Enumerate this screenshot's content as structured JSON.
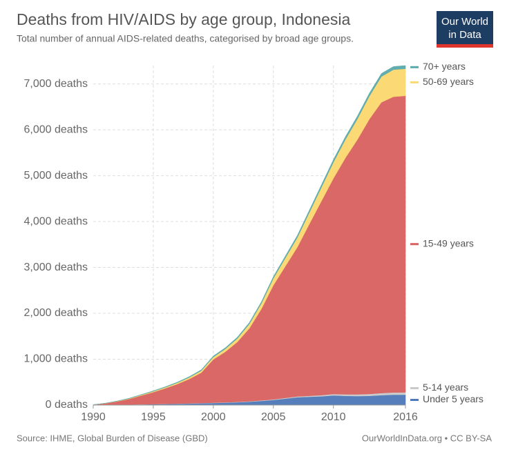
{
  "chart_data": {
    "type": "stacked_area",
    "title": "Deaths from HIV/AIDS by age group, Indonesia",
    "subtitle": "Total number of annual AIDS-related deaths, categorised by broad age groups.",
    "logo": [
      "Our World",
      "in Data"
    ],
    "source": "Source: IHME, Global Burden of Disease (GBD)",
    "credit": "OurWorldInData.org • CC BY-SA",
    "x": [
      1990,
      1991,
      1992,
      1993,
      1994,
      1995,
      1996,
      1997,
      1998,
      1999,
      2000,
      2001,
      2002,
      2003,
      2004,
      2005,
      2006,
      2007,
      2008,
      2009,
      2010,
      2011,
      2012,
      2013,
      2014,
      2015,
      2016
    ],
    "xlim": [
      1990,
      2016
    ],
    "xticks": [
      1990,
      1995,
      2000,
      2005,
      2010,
      2016
    ],
    "ylim": [
      0,
      7400
    ],
    "yticks": [
      {
        "value": 0,
        "label": "0 deaths"
      },
      {
        "value": 1000,
        "label": "1,000 deaths"
      },
      {
        "value": 2000,
        "label": "2,000 deaths"
      },
      {
        "value": 3000,
        "label": "3,000 deaths"
      },
      {
        "value": 4000,
        "label": "4,000 deaths"
      },
      {
        "value": 5000,
        "label": "5,000 deaths"
      },
      {
        "value": 6000,
        "label": "6,000 deaths"
      },
      {
        "value": 7000,
        "label": "7,000 deaths"
      }
    ],
    "grid": true,
    "series": [
      {
        "name": "Under 5 years",
        "color": "#4c78b8",
        "values": [
          1,
          3,
          6,
          10,
          14,
          18,
          22,
          27,
          32,
          38,
          45,
          52,
          60,
          72,
          90,
          110,
          140,
          170,
          180,
          190,
          210,
          200,
          195,
          200,
          215,
          225,
          225
        ]
      },
      {
        "name": "5-14 years",
        "color": "#c9c9c9",
        "values": [
          0,
          1,
          1,
          2,
          2,
          3,
          3,
          4,
          5,
          6,
          7,
          8,
          9,
          10,
          12,
          14,
          16,
          18,
          22,
          26,
          30,
          34,
          38,
          42,
          46,
          50,
          52
        ]
      },
      {
        "name": "15-49 years",
        "color": "#d9605f",
        "values": [
          7,
          32,
          72,
          121,
          191,
          260,
          340,
          426,
          531,
          663,
          942,
          1101,
          1306,
          1590,
          1992,
          2486,
          2870,
          3254,
          3746,
          4228,
          4700,
          5154,
          5553,
          5992,
          6339,
          6445,
          6463
        ]
      },
      {
        "name": "50-69 years",
        "color": "#fbd96e",
        "values": [
          1,
          3,
          6,
          10,
          14,
          18,
          22,
          28,
          34,
          42,
          52,
          62,
          75,
          95,
          120,
          150,
          180,
          210,
          250,
          300,
          350,
          400,
          450,
          500,
          560,
          590,
          590
        ]
      },
      {
        "name": "70+ years",
        "color": "#5aa9ac",
        "values": [
          1,
          3,
          5,
          7,
          9,
          11,
          13,
          15,
          18,
          21,
          24,
          27,
          30,
          33,
          36,
          40,
          44,
          48,
          52,
          56,
          60,
          62,
          64,
          66,
          68,
          70,
          70
        ]
      }
    ]
  }
}
